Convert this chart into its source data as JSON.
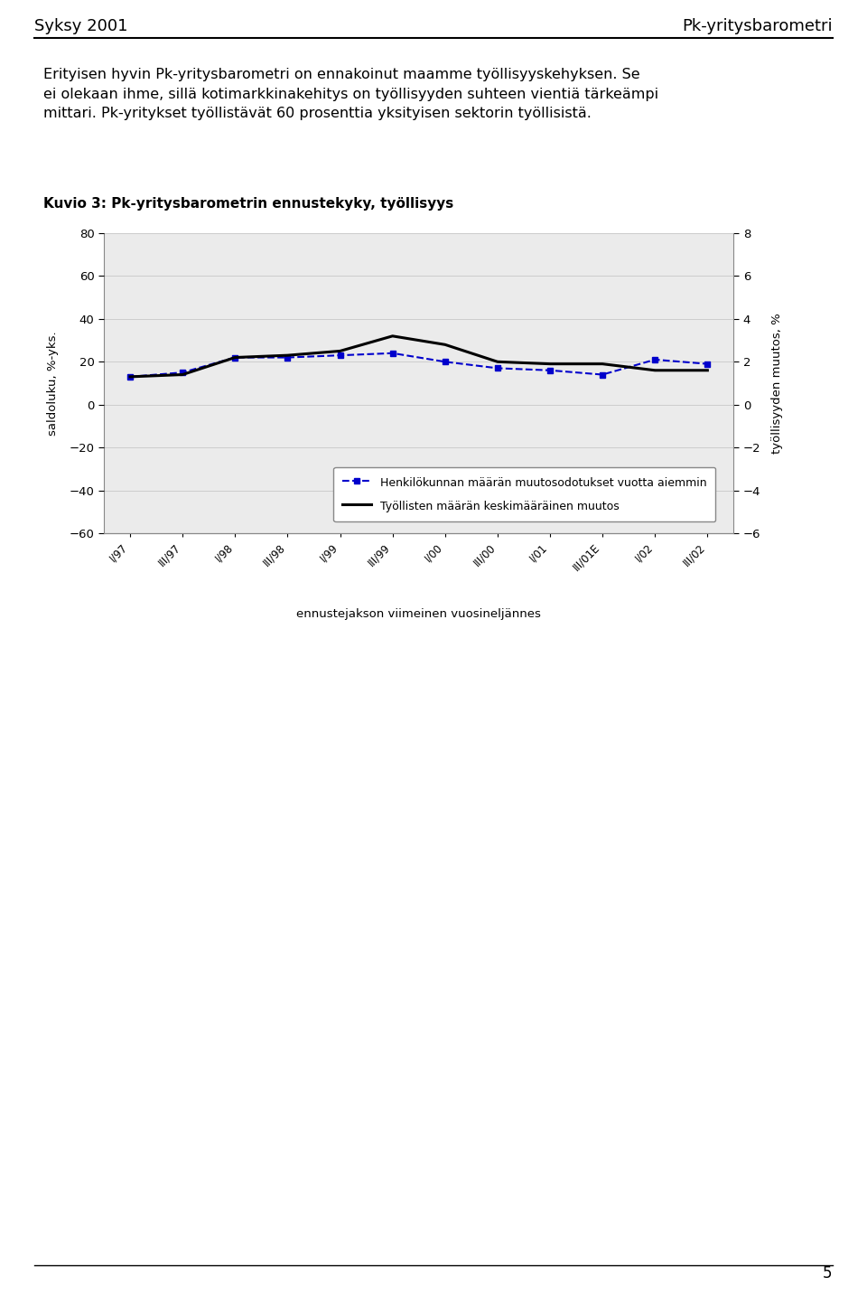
{
  "title_left": "Syksy 2001",
  "title_right": "Pk-yritysbarometri",
  "chart_title": "Kuvio 3: Pk-yritysbarometrin ennustekyky, työllisyys",
  "xlabel": "ennustejakson viimeinen vuosineljännes",
  "ylabel_left": "saldoluku, %-yks.",
  "ylabel_right": "työllisyyden muutos, %",
  "x_labels": [
    "I/97",
    "III/97",
    "I/98",
    "III/98",
    "I/99",
    "III/99",
    "I/00",
    "III/00",
    "I/01",
    "III/01E",
    "I/02",
    "III/02"
  ],
  "ylim_left": [
    -60,
    80
  ],
  "ylim_right": [
    -6,
    8
  ],
  "yticks_left": [
    -60,
    -40,
    -20,
    0,
    20,
    40,
    60,
    80
  ],
  "yticks_right": [
    -6,
    -4,
    -2,
    0,
    2,
    4,
    6,
    8
  ],
  "blue_dashed": [
    13,
    15,
    22,
    22,
    23,
    24,
    20,
    17,
    16,
    14,
    21,
    19
  ],
  "black_solid": [
    13,
    14,
    22,
    23,
    25,
    32,
    28,
    20,
    19,
    19,
    16,
    16
  ],
  "legend_dashed": "Henkilökunnan määrän muutosodotukset vuotta aiemmin",
  "legend_solid": "Työllisten määrän keskimääräinen muutos",
  "page_number": "5",
  "bg_color": "#ffffff",
  "line_color_dashed": "#0000cc",
  "line_color_solid": "#000000",
  "chart_bg": "#ebebeb"
}
